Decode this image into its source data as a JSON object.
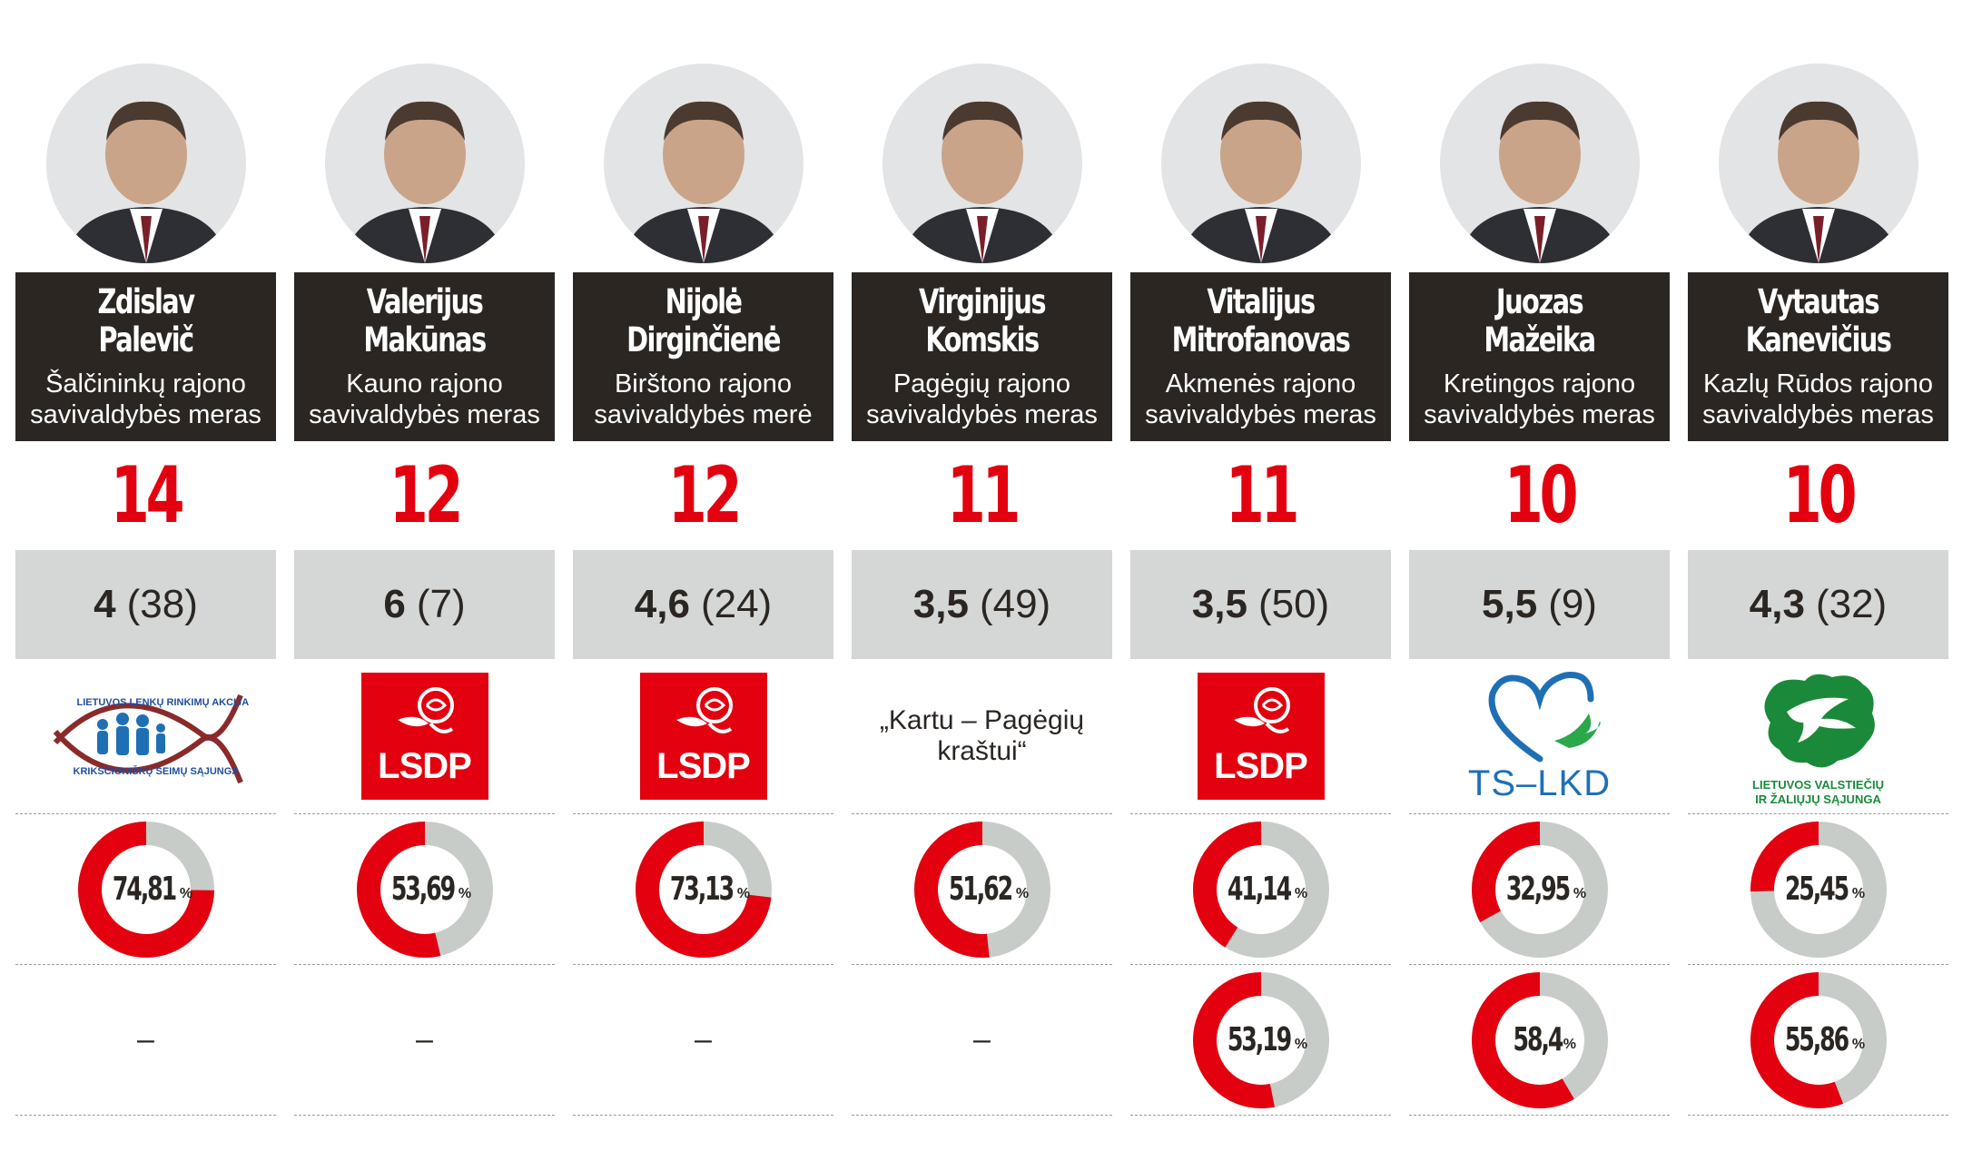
{
  "percent_sign": "%",
  "colors": {
    "accent": "#e3000f",
    "ring_track": "#c8ccc9",
    "namebox": "#2b2622",
    "rankbox": "#d4d7d6"
  },
  "people": [
    {
      "name_lines": [
        "Zdislav",
        "Palevič"
      ],
      "role_lines": [
        "Šalčininkų rajono",
        "savivaldybės meras"
      ],
      "count": "14",
      "rank_bold": "4",
      "rank_paren": "(38)",
      "party": {
        "kind": "lla-logo",
        "icon": "fish-family-icon",
        "lines": [
          "LIETUVOS LENKŲ RINKIMŲ AKCIJA",
          "KRIKŠČIONIŠKŲ ŠEIMŲ SĄJUNGA"
        ]
      },
      "result1": {
        "value": 74.81,
        "label": "74,81"
      },
      "result2": null,
      "result2_label": "–"
    },
    {
      "name_lines": [
        "Valerijus",
        "Makūnas"
      ],
      "role_lines": [
        "Kauno rajono",
        "savivaldybės meras"
      ],
      "count": "12",
      "rank_bold": "6",
      "rank_paren": "(7)",
      "party": {
        "kind": "lsdp-logo",
        "icon": "rose-icon",
        "lines": [
          "LSDP"
        ]
      },
      "result1": {
        "value": 53.69,
        "label": "53,69"
      },
      "result2": null,
      "result2_label": "–"
    },
    {
      "name_lines": [
        "Nijolė",
        "Dirginčienė"
      ],
      "role_lines": [
        "Birštono rajono",
        "savivaldybės merė"
      ],
      "count": "12",
      "rank_bold": "4,6",
      "rank_paren": "(24)",
      "party": {
        "kind": "lsdp-logo",
        "icon": "rose-icon",
        "lines": [
          "LSDP"
        ]
      },
      "result1": {
        "value": 73.13,
        "label": "73,13"
      },
      "result2": null,
      "result2_label": "–"
    },
    {
      "name_lines": [
        "Virginijus",
        "Komskis"
      ],
      "role_lines": [
        "Pagėgių rajono",
        "savivaldybės meras"
      ],
      "count": "11",
      "rank_bold": "3,5",
      "rank_paren": "(49)",
      "party": {
        "kind": "text",
        "lines": [
          "„Kartu – Pagėgių",
          "kraštui“"
        ]
      },
      "result1": {
        "value": 51.62,
        "label": "51,62"
      },
      "result2": null,
      "result2_label": "–"
    },
    {
      "name_lines": [
        "Vitalijus",
        "Mitrofanovas"
      ],
      "role_lines": [
        "Akmenės rajono",
        "savivaldybės meras"
      ],
      "count": "11",
      "rank_bold": "3,5",
      "rank_paren": "(50)",
      "party": {
        "kind": "lsdp-logo",
        "icon": "rose-icon",
        "lines": [
          "LSDP"
        ]
      },
      "result1": {
        "value": 41.14,
        "label": "41,14"
      },
      "result2": {
        "value": 53.19,
        "label": "53,19"
      },
      "result2_label": ""
    },
    {
      "name_lines": [
        "Juozas",
        "Mažeika"
      ],
      "role_lines": [
        "Kretingos rajono",
        "savivaldybės meras"
      ],
      "count": "10",
      "rank_bold": "5,5",
      "rank_paren": "(9)",
      "party": {
        "kind": "tslkd-logo",
        "icon": "heart-bird-icon",
        "lines": [
          "TS–LKD"
        ]
      },
      "result1": {
        "value": 32.95,
        "label": "32,95"
      },
      "result2": {
        "value": 58.4,
        "label": "58,4"
      },
      "result2_label": ""
    },
    {
      "name_lines": [
        "Vytautas",
        "Kanevičius"
      ],
      "role_lines": [
        "Kazlų Rūdos rajono",
        "savivaldybės meras"
      ],
      "count": "10",
      "rank_bold": "4,3",
      "rank_paren": "(32)",
      "party": {
        "kind": "lvzs-logo",
        "icon": "stork-map-icon",
        "lines": [
          "LIETUVOS VALSTIEČIŲ",
          "IR ŽALIŲJŲ SĄJUNGA"
        ]
      },
      "result1": {
        "value": 25.45,
        "label": "25,45"
      },
      "result2": {
        "value": 55.86,
        "label": "55,86"
      },
      "result2_label": ""
    }
  ]
}
